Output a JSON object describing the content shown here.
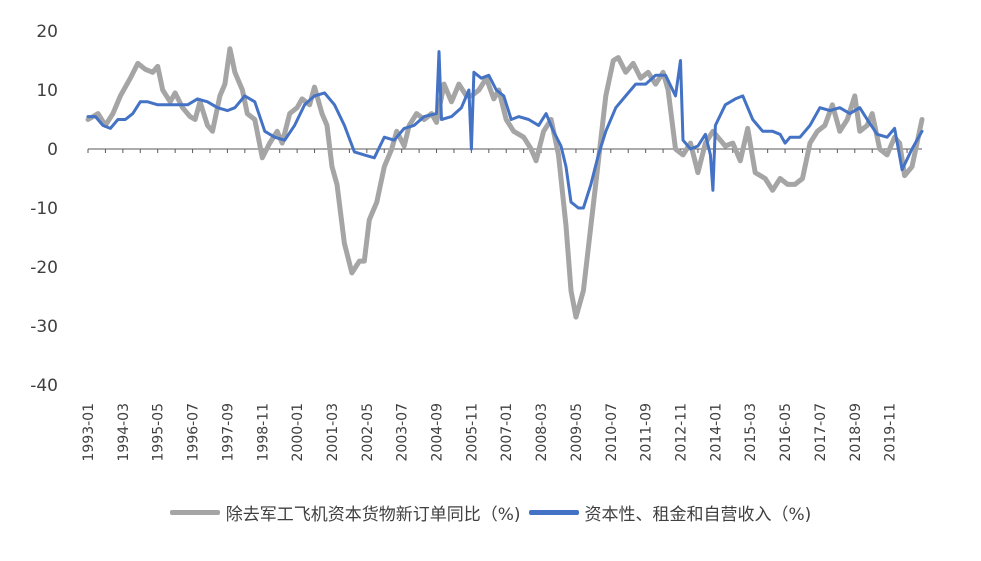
{
  "chart_data": {
    "type": "line",
    "ylim": [
      -40,
      20
    ],
    "yticks": [
      "20",
      "10",
      "0",
      "-10",
      "-20",
      "-30",
      "-40"
    ],
    "xtick_labels": [
      "1993-01",
      "1994-03",
      "1995-05",
      "1996-07",
      "1997-09",
      "1998-11",
      "2000-01",
      "2001-03",
      "2002-05",
      "2003-07",
      "2004-09",
      "2005-11",
      "2007-01",
      "2008-03",
      "2009-05",
      "2010-07",
      "2011-09",
      "2012-11",
      "2014-01",
      "2015-03",
      "2016-05",
      "2017-07",
      "2018-09",
      "2019-11"
    ],
    "x_start": "1993-01",
    "x_end": "2020-12",
    "series": [
      {
        "name": "除去军工飞机资本货物新订单同比（%)",
        "color": "#a5a5a5",
        "points": [
          [
            "1993-01",
            5
          ],
          [
            "1993-05",
            6
          ],
          [
            "1993-08",
            4
          ],
          [
            "1993-11",
            6
          ],
          [
            "1994-02",
            9
          ],
          [
            "1994-06",
            12
          ],
          [
            "1994-09",
            14.5
          ],
          [
            "1994-12",
            13.5
          ],
          [
            "1995-03",
            13
          ],
          [
            "1995-05",
            14
          ],
          [
            "1995-07",
            10
          ],
          [
            "1995-10",
            8
          ],
          [
            "1995-12",
            9.5
          ],
          [
            "1996-03",
            7
          ],
          [
            "1996-06",
            5.5
          ],
          [
            "1996-08",
            5
          ],
          [
            "1996-10",
            8
          ],
          [
            "1997-01",
            4
          ],
          [
            "1997-03",
            3
          ],
          [
            "1997-06",
            9
          ],
          [
            "1997-08",
            11
          ],
          [
            "1997-10",
            17
          ],
          [
            "1997-12",
            13
          ],
          [
            "1998-03",
            10
          ],
          [
            "1998-05",
            6
          ],
          [
            "1998-08",
            5
          ],
          [
            "1998-11",
            -1.5
          ],
          [
            "1999-02",
            1
          ],
          [
            "1999-05",
            3
          ],
          [
            "1999-07",
            1
          ],
          [
            "1999-10",
            6
          ],
          [
            "2000-01",
            7
          ],
          [
            "2000-03",
            8.5
          ],
          [
            "2000-06",
            7.5
          ],
          [
            "2000-08",
            10.5
          ],
          [
            "2000-11",
            6
          ],
          [
            "2001-01",
            4
          ],
          [
            "2001-03",
            -3
          ],
          [
            "2001-05",
            -6
          ],
          [
            "2001-08",
            -16
          ],
          [
            "2001-11",
            -21
          ],
          [
            "2002-02",
            -19
          ],
          [
            "2002-04",
            -19
          ],
          [
            "2002-06",
            -12
          ],
          [
            "2002-09",
            -9
          ],
          [
            "2002-12",
            -3
          ],
          [
            "2003-03",
            0
          ],
          [
            "2003-05",
            3
          ],
          [
            "2003-08",
            0.5
          ],
          [
            "2003-10",
            4
          ],
          [
            "2004-01",
            6
          ],
          [
            "2004-04",
            5
          ],
          [
            "2004-07",
            6
          ],
          [
            "2004-09",
            4.5
          ],
          [
            "2004-12",
            11
          ],
          [
            "2005-03",
            8
          ],
          [
            "2005-06",
            11
          ],
          [
            "2005-09",
            9
          ],
          [
            "2005-11",
            9
          ],
          [
            "2006-02",
            10
          ],
          [
            "2006-05",
            12
          ],
          [
            "2006-08",
            8.5
          ],
          [
            "2006-10",
            10
          ],
          [
            "2007-01",
            5
          ],
          [
            "2007-04",
            3
          ],
          [
            "2007-08",
            2
          ],
          [
            "2007-11",
            0
          ],
          [
            "2008-01",
            -2
          ],
          [
            "2008-04",
            3
          ],
          [
            "2008-07",
            5
          ],
          [
            "2008-10",
            -1
          ],
          [
            "2009-01",
            -13
          ],
          [
            "2009-03",
            -24
          ],
          [
            "2009-05",
            -28.5
          ],
          [
            "2009-08",
            -24
          ],
          [
            "2009-11",
            -13
          ],
          [
            "2010-02",
            -2
          ],
          [
            "2010-05",
            9
          ],
          [
            "2010-08",
            15
          ],
          [
            "2010-10",
            15.5
          ],
          [
            "2011-01",
            13
          ],
          [
            "2011-04",
            14.5
          ],
          [
            "2011-07",
            12
          ],
          [
            "2011-10",
            13
          ],
          [
            "2012-01",
            11
          ],
          [
            "2012-04",
            13
          ],
          [
            "2012-06",
            10
          ],
          [
            "2012-09",
            0
          ],
          [
            "2012-12",
            -1
          ],
          [
            "2013-03",
            1
          ],
          [
            "2013-06",
            -4
          ],
          [
            "2013-09",
            1
          ],
          [
            "2013-12",
            3
          ],
          [
            "2014-02",
            2
          ],
          [
            "2014-05",
            0.5
          ],
          [
            "2014-08",
            1
          ],
          [
            "2014-11",
            -2
          ],
          [
            "2015-02",
            3.5
          ],
          [
            "2015-05",
            -4
          ],
          [
            "2015-09",
            -5
          ],
          [
            "2015-12",
            -7
          ],
          [
            "2016-03",
            -5
          ],
          [
            "2016-06",
            -6
          ],
          [
            "2016-09",
            -6
          ],
          [
            "2016-12",
            -5
          ],
          [
            "2017-03",
            1
          ],
          [
            "2017-06",
            3
          ],
          [
            "2017-09",
            4
          ],
          [
            "2017-12",
            7.5
          ],
          [
            "2018-03",
            3
          ],
          [
            "2018-06",
            5
          ],
          [
            "2018-09",
            9
          ],
          [
            "2018-11",
            3
          ],
          [
            "2019-02",
            4
          ],
          [
            "2019-04",
            6
          ],
          [
            "2019-07",
            0
          ],
          [
            "2019-10",
            -1
          ],
          [
            "2020-01",
            2
          ],
          [
            "2020-03",
            1
          ],
          [
            "2020-05",
            -4.5
          ],
          [
            "2020-08",
            -3
          ],
          [
            "2020-12",
            5
          ]
        ]
      },
      {
        "name": "资本性、租金和自营收入（%)",
        "color": "#4472c4",
        "points": [
          [
            "1993-01",
            5.5
          ],
          [
            "1993-04",
            5.5
          ],
          [
            "1993-07",
            4
          ],
          [
            "1993-10",
            3.5
          ],
          [
            "1994-01",
            5
          ],
          [
            "1994-04",
            5
          ],
          [
            "1994-07",
            6
          ],
          [
            "1994-10",
            8
          ],
          [
            "1995-01",
            8
          ],
          [
            "1995-05",
            7.5
          ],
          [
            "1995-09",
            7.5
          ],
          [
            "1996-01",
            7.5
          ],
          [
            "1996-05",
            7.5
          ],
          [
            "1996-09",
            8.5
          ],
          [
            "1997-01",
            8
          ],
          [
            "1997-05",
            7
          ],
          [
            "1997-09",
            6.5
          ],
          [
            "1997-12",
            7
          ],
          [
            "1998-04",
            9
          ],
          [
            "1998-08",
            8
          ],
          [
            "1998-12",
            3
          ],
          [
            "1999-04",
            2
          ],
          [
            "1999-08",
            1.5
          ],
          [
            "1999-12",
            4
          ],
          [
            "2000-04",
            7.5
          ],
          [
            "2000-08",
            9
          ],
          [
            "2000-12",
            9.5
          ],
          [
            "2001-04",
            7.5
          ],
          [
            "2001-08",
            4
          ],
          [
            "2001-12",
            -0.5
          ],
          [
            "2002-04",
            -1
          ],
          [
            "2002-08",
            -1.5
          ],
          [
            "2002-12",
            2
          ],
          [
            "2003-04",
            1.5
          ],
          [
            "2003-08",
            3.5
          ],
          [
            "2003-12",
            4
          ],
          [
            "2004-04",
            5.5
          ],
          [
            "2004-09",
            6
          ],
          [
            "2004-10",
            16.5
          ],
          [
            "2004-11",
            5
          ],
          [
            "2005-03",
            5.5
          ],
          [
            "2005-07",
            7
          ],
          [
            "2005-10",
            10
          ],
          [
            "2005-11",
            0
          ],
          [
            "2005-12",
            13
          ],
          [
            "2006-03",
            12
          ],
          [
            "2006-06",
            12.5
          ],
          [
            "2006-09",
            10
          ],
          [
            "2006-12",
            9
          ],
          [
            "2007-03",
            5
          ],
          [
            "2007-06",
            5.5
          ],
          [
            "2007-10",
            5
          ],
          [
            "2008-02",
            4
          ],
          [
            "2008-05",
            6
          ],
          [
            "2008-08",
            3
          ],
          [
            "2008-11",
            0.5
          ],
          [
            "2009-01",
            -3
          ],
          [
            "2009-03",
            -9
          ],
          [
            "2009-06",
            -10
          ],
          [
            "2009-08",
            -10
          ],
          [
            "2009-11",
            -6
          ],
          [
            "2010-02",
            -1
          ],
          [
            "2010-05",
            3
          ],
          [
            "2010-09",
            7
          ],
          [
            "2011-01",
            9
          ],
          [
            "2011-05",
            11
          ],
          [
            "2011-09",
            11
          ],
          [
            "2012-01",
            12.5
          ],
          [
            "2012-05",
            12.5
          ],
          [
            "2012-09",
            9
          ],
          [
            "2012-11",
            15
          ],
          [
            "2012-12",
            1.5
          ],
          [
            "2013-03",
            0
          ],
          [
            "2013-06",
            0.5
          ],
          [
            "2013-09",
            2.5
          ],
          [
            "2013-11",
            -1
          ],
          [
            "2013-12",
            -7
          ],
          [
            "2014-01",
            4
          ],
          [
            "2014-05",
            7.5
          ],
          [
            "2014-09",
            8.5
          ],
          [
            "2014-12",
            9
          ],
          [
            "2015-04",
            5
          ],
          [
            "2015-08",
            3
          ],
          [
            "2015-12",
            3
          ],
          [
            "2016-03",
            2.5
          ],
          [
            "2016-05",
            1
          ],
          [
            "2016-07",
            2
          ],
          [
            "2016-11",
            2
          ],
          [
            "2017-03",
            4
          ],
          [
            "2017-07",
            7
          ],
          [
            "2017-11",
            6.5
          ],
          [
            "2018-03",
            7
          ],
          [
            "2018-07",
            6
          ],
          [
            "2018-11",
            7
          ],
          [
            "2019-02",
            5
          ],
          [
            "2019-06",
            2.5
          ],
          [
            "2019-10",
            2
          ],
          [
            "2020-01",
            3.5
          ],
          [
            "2020-04",
            -3.5
          ],
          [
            "2020-08",
            0
          ],
          [
            "2020-12",
            3
          ]
        ]
      }
    ]
  }
}
